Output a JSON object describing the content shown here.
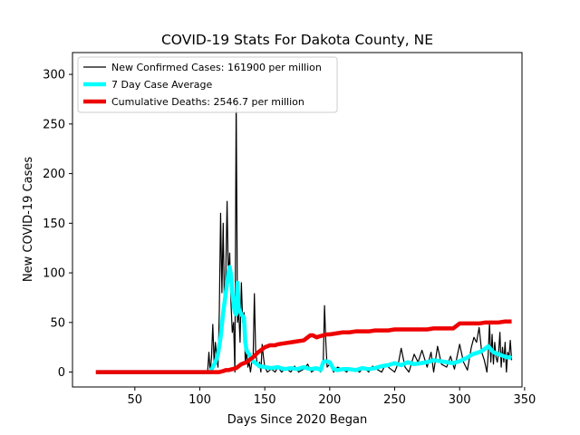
{
  "chart_data": {
    "type": "line",
    "title": "COVID-19 Stats For Dakota County, NE",
    "xlabel": "Days Since 2020 Began",
    "ylabel": "New COVID-19 Cases",
    "xlim": [
      2,
      348
    ],
    "ylim": [
      -15,
      322
    ],
    "xticks": [
      50,
      100,
      150,
      200,
      250,
      300,
      350
    ],
    "yticks": [
      0,
      50,
      100,
      150,
      200,
      250,
      300
    ],
    "grid": false,
    "legend_position": "top-left",
    "series": [
      {
        "name": "New Confirmed Cases: 161900 per million",
        "color": "#000000",
        "linewidth": 1.2,
        "x": [
          20,
          100,
          106,
          107,
          108,
          109,
          110,
          111,
          112,
          113,
          114,
          115,
          116,
          117,
          118,
          119,
          120,
          121,
          122,
          123,
          124,
          125,
          126,
          127,
          128,
          129,
          130,
          131,
          132,
          133,
          134,
          135,
          136,
          137,
          138,
          139,
          140,
          141,
          142,
          143,
          144,
          145,
          146,
          147,
          148,
          149,
          150,
          152,
          155,
          158,
          160,
          163,
          166,
          170,
          173,
          176,
          180,
          183,
          186,
          190,
          193,
          195,
          196,
          197,
          198,
          200,
          203,
          206,
          210,
          213,
          216,
          220,
          223,
          226,
          230,
          233,
          236,
          240,
          243,
          246,
          250,
          253,
          255,
          258,
          261,
          265,
          268,
          271,
          275,
          278,
          280,
          283,
          286,
          290,
          293,
          296,
          300,
          303,
          306,
          309,
          311,
          313,
          315,
          317,
          319,
          321,
          322,
          323,
          324,
          325,
          326,
          327,
          328,
          329,
          330,
          331,
          332,
          333,
          334,
          335,
          336,
          337,
          338,
          339,
          340
        ],
        "y": [
          0,
          0,
          0,
          20,
          0,
          15,
          48,
          10,
          30,
          15,
          5,
          60,
          160,
          80,
          150,
          60,
          100,
          172,
          90,
          120,
          70,
          40,
          50,
          0,
          275,
          50,
          60,
          30,
          90,
          50,
          60,
          10,
          20,
          5,
          10,
          0,
          10,
          12,
          79,
          20,
          10,
          5,
          10,
          0,
          28,
          15,
          5,
          0,
          3,
          0,
          5,
          0,
          4,
          0,
          6,
          0,
          3,
          8,
          0,
          4,
          0,
          10,
          67,
          30,
          5,
          8,
          0,
          5,
          3,
          0,
          4,
          2,
          0,
          5,
          0,
          6,
          3,
          0,
          8,
          4,
          0,
          10,
          24,
          5,
          0,
          18,
          10,
          22,
          5,
          20,
          0,
          26,
          8,
          5,
          16,
          3,
          28,
          10,
          2,
          25,
          35,
          30,
          45,
          20,
          12,
          0,
          18,
          50,
          10,
          38,
          8,
          30,
          15,
          10,
          20,
          40,
          5,
          25,
          10,
          30,
          0,
          20,
          15,
          32,
          12
        ]
      },
      {
        "name": "7 Day Case Average",
        "color": "#00ffff",
        "linewidth": 4.5,
        "x": [
          20,
          100,
          108,
          110,
          112,
          114,
          116,
          118,
          120,
          122,
          123,
          124,
          125,
          126,
          127,
          128,
          129,
          130,
          132,
          134,
          135,
          136,
          138,
          140,
          142,
          144,
          146,
          150,
          155,
          160,
          165,
          170,
          175,
          180,
          185,
          190,
          193,
          195,
          197,
          200,
          203,
          206,
          210,
          215,
          220,
          225,
          230,
          235,
          240,
          245,
          250,
          255,
          260,
          265,
          270,
          275,
          280,
          285,
          290,
          295,
          300,
          305,
          310,
          315,
          318,
          320,
          322,
          324,
          326,
          328,
          330,
          332,
          334,
          336,
          338,
          340
        ],
        "y": [
          0,
          0,
          0,
          5,
          10,
          18,
          35,
          60,
          80,
          100,
          106,
          98,
          80,
          68,
          60,
          58,
          90,
          64,
          58,
          55,
          30,
          22,
          18,
          12,
          10,
          8,
          6,
          5,
          4,
          5,
          3,
          4,
          3,
          5,
          3,
          4,
          2,
          10,
          11,
          10,
          3,
          2,
          3,
          3,
          2,
          4,
          3,
          4,
          6,
          7,
          9,
          7,
          10,
          8,
          9,
          10,
          12,
          11,
          10,
          9,
          11,
          14,
          18,
          20,
          22,
          24,
          26,
          23,
          20,
          19,
          18,
          17,
          16,
          15,
          15,
          14
        ]
      },
      {
        "name": "Cumulative Deaths: 2546.7 per million",
        "color": "#ee0000",
        "linewidth": 4.5,
        "x": [
          20,
          110,
          115,
          118,
          120,
          122,
          125,
          128,
          130,
          132,
          134,
          136,
          138,
          140,
          142,
          144,
          146,
          148,
          150,
          152,
          154,
          156,
          158,
          160,
          165,
          170,
          175,
          180,
          185,
          187,
          190,
          192,
          195,
          198,
          200,
          205,
          210,
          215,
          220,
          225,
          230,
          235,
          240,
          245,
          250,
          255,
          260,
          265,
          270,
          275,
          280,
          285,
          290,
          295,
          300,
          305,
          310,
          315,
          320,
          325,
          330,
          335,
          340
        ],
        "y": [
          0,
          0,
          0,
          1,
          2,
          2,
          3,
          4,
          6,
          8,
          9,
          10,
          12,
          14,
          16,
          19,
          21,
          23,
          25,
          26,
          27,
          27,
          27,
          28,
          29,
          30,
          31,
          32,
          37,
          37,
          35,
          36,
          37,
          38,
          38,
          39,
          40,
          40,
          41,
          41,
          41,
          42,
          42,
          42,
          43,
          43,
          43,
          43,
          43,
          43,
          44,
          44,
          44,
          44,
          49,
          49,
          49,
          49,
          50,
          50,
          50,
          51,
          51
        ]
      }
    ]
  }
}
